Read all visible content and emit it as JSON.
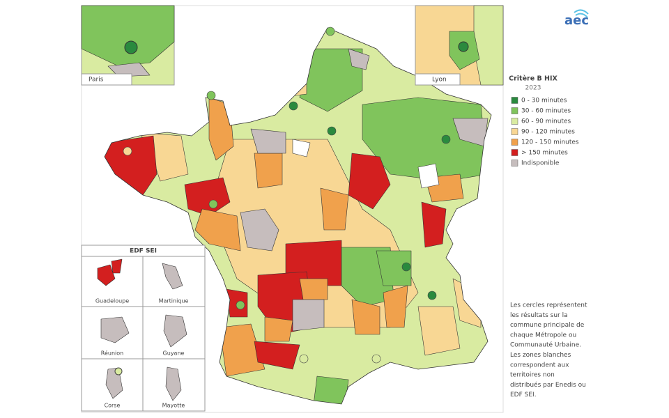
{
  "logo": "aec",
  "legend": {
    "title": "Critère B HIX",
    "year": "2023",
    "items": [
      {
        "label": "0 - 30 minutes",
        "color": "#2a8a3e"
      },
      {
        "label": "30 - 60 minutes",
        "color": "#80c45c"
      },
      {
        "label": "60 - 90 minutes",
        "color": "#d9eba1"
      },
      {
        "label": "90 - 120 minutes",
        "color": "#f8d794"
      },
      {
        "label": "120 - 150 minutes",
        "color": "#f0a14c"
      },
      {
        "label": "> 150 minutes",
        "color": "#d31f1f"
      },
      {
        "label": "Indisponible",
        "color": "#c6bdbd"
      }
    ]
  },
  "insets": {
    "paris": "Paris",
    "lyon": "Lyon"
  },
  "edf_sei": {
    "title": "EDF SEI",
    "territories": [
      "Guadeloupe",
      "Martinique",
      "Réunion",
      "Guyane",
      "Corse",
      "Mayotte"
    ]
  },
  "note": [
    "Les cercles représentent",
    "les résultats sur la",
    "commune principale de",
    "chaque Métropole ou",
    "Communauté Urbaine.",
    "Les zones blanches",
    "correspondent aux",
    "territoires non",
    "distribués par Enedis ou",
    "EDF SEI."
  ]
}
